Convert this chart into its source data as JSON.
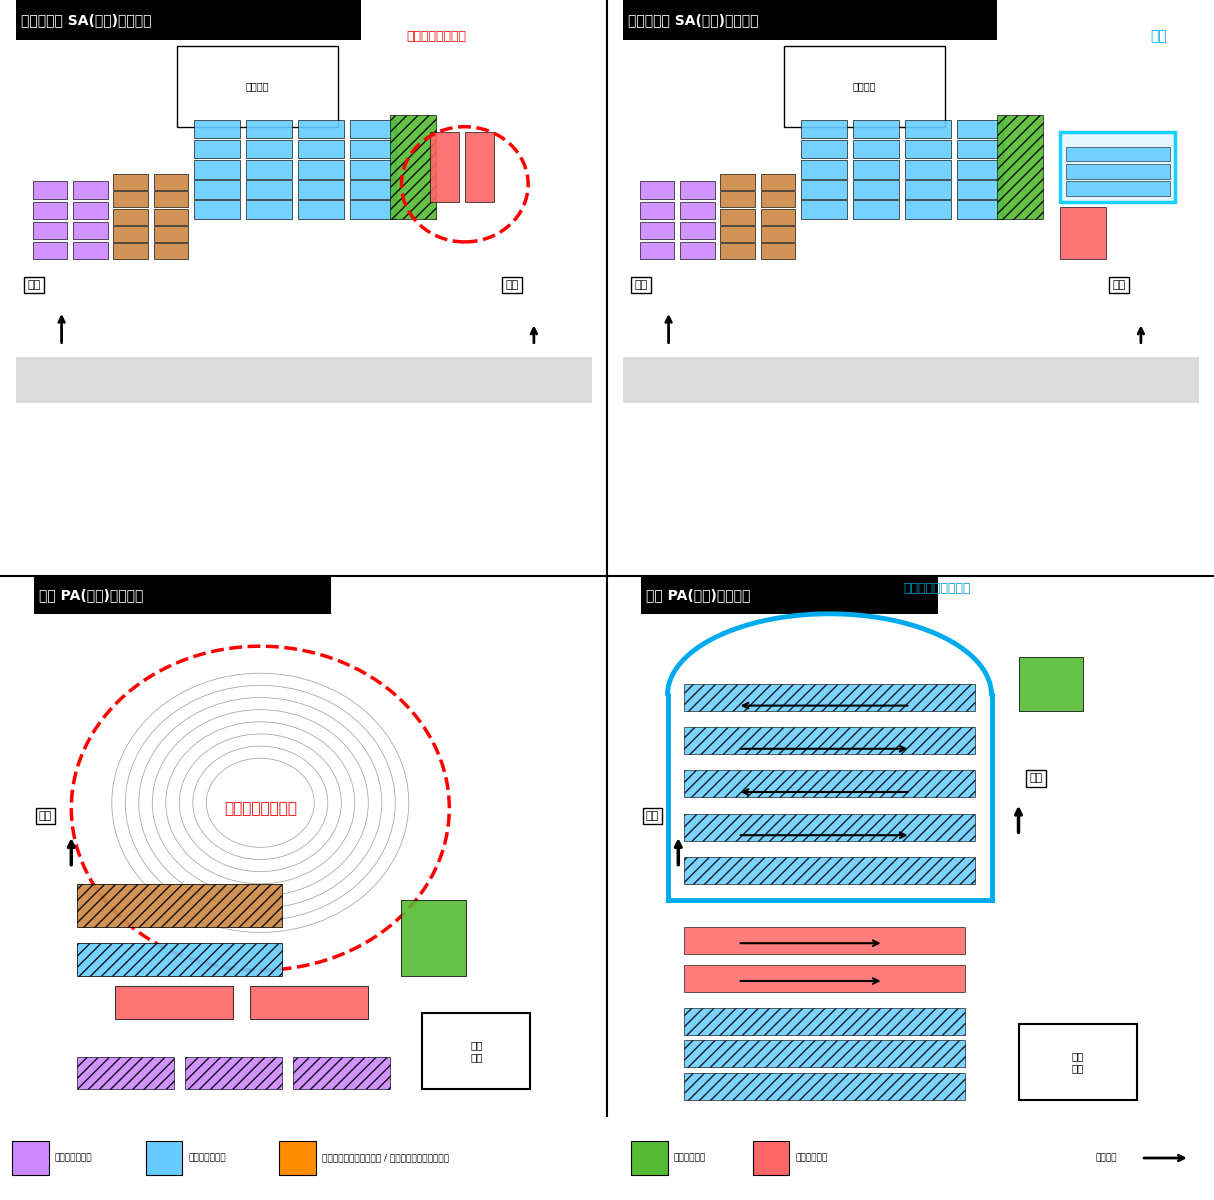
{
  "title_top_left": "駿河湾沼津 SA(上り)　工事前",
  "title_top_right": "駿河湾沼津 SA(上り)　工事後",
  "title_bottom_left": "清水 PA(下り)　工事前",
  "title_bottom_right": "清水 PA(下り)　工事後",
  "annotation_top_left_red": "駐車エリアの拡大",
  "annotation_bottom_left_red": "駐車エリアの拡大",
  "annotation_top_right_cyan": "増設",
  "annotation_bottom_right_cyan": "Ｖ字駐車レイアウト",
  "label_shogyo_top_left": "商業施設",
  "label_shogyo_top_right": "商業施設",
  "label_shogyo_bottom_left": "商業\n施設",
  "label_shogyo_bottom_right": "商業\n施設",
  "label_iriguchi": "入口",
  "label_deguchi": "出口",
  "legend_items": [
    {
      "label": "普通車駐車マス",
      "color": "#CC88FF"
    },
    {
      "label": "大型車駐車マス",
      "color": "#66CCFF"
    },
    {
      "label": "普通車・中型車兼用マス",
      "color": "#FF9900"
    },
    {
      "label": "普通車・大型車兼用マス",
      "color": "#FF9900"
    },
    {
      "label": "バス専用マス",
      "color": "#66CC44"
    },
    {
      "label": "トレーラマス",
      "color": "#FF6666"
    },
    {
      "label": "進行方向",
      "color": "#000000"
    }
  ],
  "bg_color": "#FFFFFF",
  "title_bg_color": "#000000",
  "title_text_color": "#FFFFFF",
  "map_bg_color": "#F0EEE8",
  "divider_color": "#000000"
}
